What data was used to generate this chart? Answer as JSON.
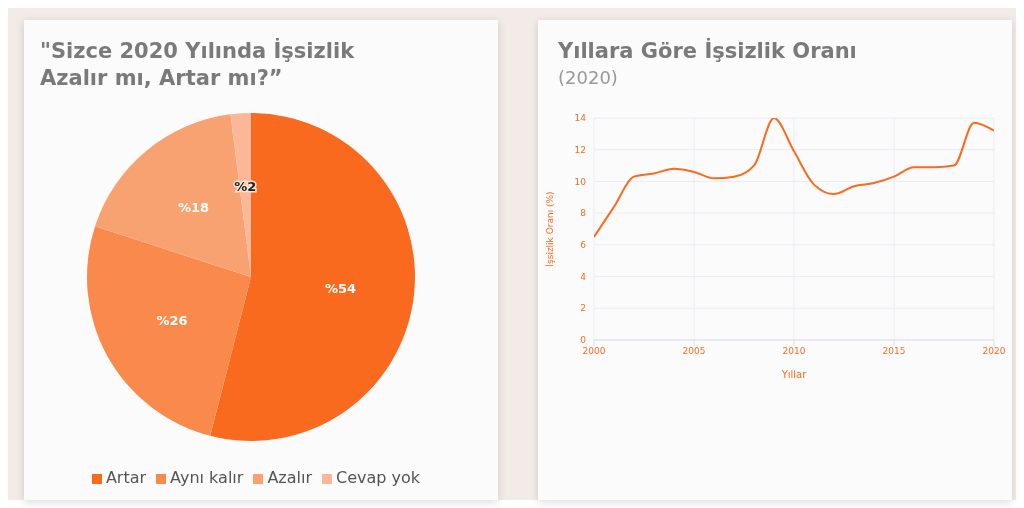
{
  "chart_data": [
    {
      "type": "pie",
      "title": "\"Sizce 2020 Yılında İşsizlik Azalır mı, Artar mı?”",
      "categories": [
        "Artar",
        "Aynı kalır",
        "Azalır",
        "Cevap yok"
      ],
      "values": [
        54,
        26,
        18,
        2
      ],
      "colors": [
        "#f96a1f",
        "#f98a4c",
        "#f9a271",
        "#fbb899"
      ],
      "value_labels": [
        "%54",
        "%26",
        "%18",
        "%2"
      ],
      "legend": "bottom"
    },
    {
      "type": "line",
      "title": "Yıllara Göre İşsizlik Oranı",
      "subtitle": "(2020)",
      "xlabel": "Yıllar",
      "ylabel": "İşsizlik Oranı (%)",
      "x": [
        2000,
        2001,
        2002,
        2003,
        2004,
        2005,
        2006,
        2007,
        2008,
        2009,
        2010,
        2011,
        2012,
        2013,
        2014,
        2015,
        2016,
        2017,
        2018,
        2019,
        2020
      ],
      "series": [
        {
          "color": "#fc6a20",
          "values": [
            6.5,
            8.4,
            10.3,
            10.5,
            10.8,
            10.6,
            10.2,
            10.3,
            11.0,
            14.0,
            11.9,
            9.8,
            9.2,
            9.7,
            9.9,
            10.3,
            10.9,
            10.9,
            11.0,
            13.7,
            13.2
          ]
        }
      ],
      "xlim": [
        2000,
        2020
      ],
      "xticks": [
        2000,
        2005,
        2010,
        2015,
        2020
      ],
      "ylim": [
        0,
        14
      ],
      "yticks": [
        0,
        2,
        4,
        6,
        8,
        10,
        12,
        14
      ],
      "grid": true,
      "marker": "none",
      "line_style": "solid"
    }
  ]
}
